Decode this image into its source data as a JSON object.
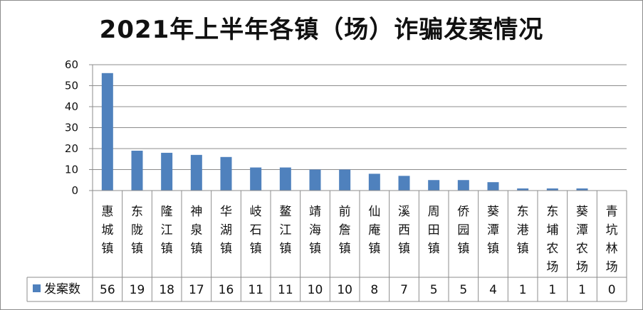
{
  "chart_data": {
    "type": "bar",
    "title": "2021年上半年各镇（场）诈骗发案情况",
    "categories": [
      "惠城镇",
      "东陇镇",
      "隆江镇",
      "神泉镇",
      "华湖镇",
      "岐石镇",
      "鳌江镇",
      "靖海镇",
      "前詹镇",
      "仙庵镇",
      "溪西镇",
      "周田镇",
      "侨园镇",
      "葵潭镇",
      "东港镇",
      "东埔农场",
      "葵潭农场",
      "青坑林场"
    ],
    "series": [
      {
        "name": "发案数",
        "values": [
          56,
          19,
          18,
          17,
          16,
          11,
          11,
          10,
          10,
          8,
          7,
          5,
          5,
          4,
          1,
          1,
          1,
          0
        ]
      }
    ],
    "ylim": [
      0,
      60
    ],
    "yticks": [
      0,
      10,
      20,
      30,
      40,
      50,
      60
    ],
    "xlabel": "",
    "ylabel": "",
    "grid": true,
    "legend": "data-table",
    "data_table": true,
    "colors": {
      "bar": "#4f81bd",
      "grid": "#8c8c8c",
      "axis": "#8c8c8c"
    }
  }
}
